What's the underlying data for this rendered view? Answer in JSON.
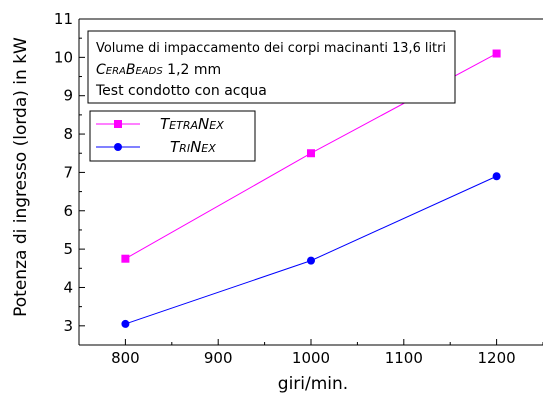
{
  "chart_data": {
    "type": "line",
    "title": "",
    "xlabel": "giri/min.",
    "ylabel": "Potenza di ingresso (lorda) in kW",
    "x": [
      800,
      1000,
      1200
    ],
    "xlim": [
      750,
      1250
    ],
    "ylim": [
      2.5,
      11
    ],
    "xticks": [
      800,
      900,
      1000,
      1100,
      1200
    ],
    "yticks": [
      3,
      4,
      5,
      6,
      7,
      8,
      9,
      10,
      11
    ],
    "grid": false,
    "legend_position": "top-left",
    "annotation": {
      "line1": "Volume di impaccamento dei corpi macinanti 13,6 litri",
      "line2_brand_first": "C",
      "line2_brand_rest_a": "ERA",
      "line2_brand_mid": "B",
      "line2_brand_rest_b": "EADS",
      "line2_value": " 1,2 mm",
      "line3": "Test condotto con acqua"
    },
    "series": [
      {
        "name": "TetraNex",
        "name_parts": [
          "T",
          "ETRA",
          "N",
          "EX"
        ],
        "values": [
          4.75,
          7.5,
          10.1
        ],
        "color": "#ff00ff",
        "marker": "square"
      },
      {
        "name": "TriNex",
        "name_parts": [
          "T",
          "RI",
          "N",
          "EX"
        ],
        "values": [
          3.05,
          4.7,
          6.9
        ],
        "color": "#0000ff",
        "marker": "circle"
      }
    ]
  }
}
